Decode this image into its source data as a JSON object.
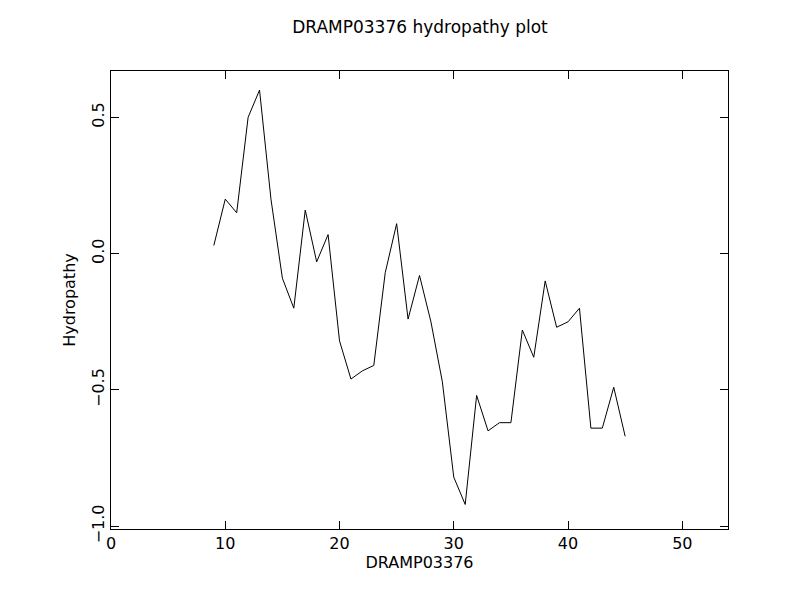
{
  "chart_data": {
    "type": "line",
    "title": "DRAMP03376 hydropathy plot",
    "x_label": "DRAMP03376",
    "y_label": "Hydropathy",
    "x": [
      9,
      10,
      11,
      12,
      13,
      14,
      15,
      16,
      17,
      18,
      19,
      20,
      21,
      22,
      23,
      24,
      25,
      26,
      27,
      28,
      29,
      30,
      31,
      32,
      33,
      34,
      35,
      36,
      37,
      38,
      39,
      40,
      41,
      42,
      43,
      44,
      45
    ],
    "values": [
      0.03,
      0.2,
      0.15,
      0.5,
      0.6,
      0.2,
      -0.09,
      -0.2,
      0.16,
      -0.03,
      0.07,
      -0.32,
      -0.46,
      -0.43,
      -0.41,
      -0.07,
      0.11,
      -0.24,
      -0.08,
      -0.25,
      -0.47,
      -0.82,
      -0.92,
      -0.52,
      -0.65,
      -0.62,
      -0.62,
      -0.28,
      -0.38,
      -0.1,
      -0.27,
      -0.25,
      -0.2,
      -0.64,
      -0.64,
      -0.49,
      -0.67
    ],
    "color": "#000000",
    "xlim": [
      0,
      54
    ],
    "ylim": [
      -1.01,
      0.67
    ],
    "xticks": [
      0,
      10,
      20,
      30,
      40,
      50
    ],
    "yticks": [
      {
        "value": -1.0,
        "label": "−1.0"
      },
      {
        "value": -0.5,
        "label": "−0.5"
      },
      {
        "value": 0,
        "label": "0.0"
      },
      {
        "value": 0.5,
        "label": "0.5"
      }
    ],
    "grid": false
  }
}
